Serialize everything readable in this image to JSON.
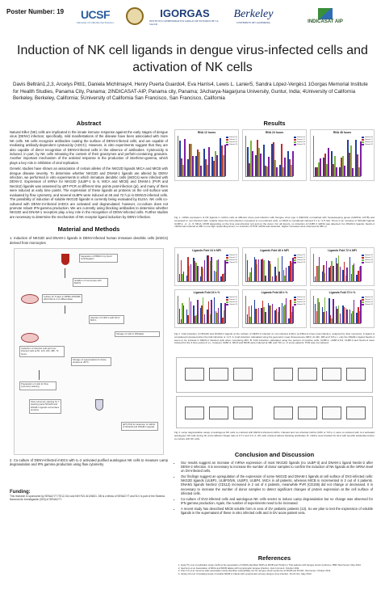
{
  "header": {
    "poster_number": "Poster Number: 19",
    "logos": [
      {
        "name": "UCSF",
        "sub": "University of California San Francisco"
      },
      {
        "name": "IGORGAS",
        "sub": "INSTITUTO CONMEMORATIVO GORGAS DE ESTUDIOS DE LA SALUD"
      },
      {
        "name": "Berkeley",
        "sub": "UNIVERSITY OF CALIFORNIA"
      },
      {
        "name": "INDICASAT AIP",
        "sub": ""
      }
    ]
  },
  "title": "Induction of NK cell ligands in dengue virus-infected cells and activation of NK cells",
  "authors": "Davis Beltrán1,2,3, Arcelys Pitti1, Daniela Michlmayr4, Henry Puerta Guardo4, Eva Harris4, Lewis L. Lanier5, Sandra López-Vergès1 1Gorgas Memorial Institute for Health Studies, Panama City, Panama; 2INDICASAT-AIP, Panama city, Panama; 3Acharya-Nagarjuna University, Guntur, India; 4University of California Berkeley, Berkeley, California; 5University of California San Francisco, San Francisco, California",
  "abstract": {
    "heading": "Abstract",
    "paragraphs": [
      "Natural Killer (NK) cells are implicated in the innate immune response against the early stages of dengue virus (DENV) infection; specifically, mild manifestations of the disease have been associated with more NK cells. NK cells recognize antibodies coating the surface of DENV-infected cells, and are capable of mediating antibody-dependent cytotoxicity (ADCC). However, in vitro experiments suggest that they are also capable of direct recognition of DENV-infected cells in the absence of antibodies. Cytotoxicity is induced, in part, by NK cells releasing the content of their granzymes and perforin-containing granules. Another important mechanism of the antiviral response is the production of interferon-gamma, which plays a key role in inhibition of viral replication.",
      "Genetic studies have shown an association of certain alleles of the NKG2D ligands MICA and MICB with dengue disease severity. To determine whether NKG2D and DNAM-1 ligands are altered by DENV infection, we performed in vitro experiments in which immature dendritic cells (imDCs) were infected with DENV-2. Expression of mRNA for NKG2D (ULBP-1 to 6, MICA and MICB) and DNAM-1 (PVR and Nectin2) ligands was assessed by qRT-PCR at different time points post-infection (pi), and many of them were induced at early time points. The expression of these ligands as proteins on the cell surface was evaluated by flow cytometry, and several ULBPs were induced at 48 and 72 h pi in DENV2-infected cells. The possibility of induction of soluble NKG2D ligands is currently being evaluated by ELISA. NK cells co-cultured with DENV-2-infected imDCs are activated and degranulated; however, co-culture does not promote robust IFN-gamma production. We are currently using blocking antibodies to determine whether NKG2D and DNAM-1 receptors play a key role in the recognition of DENV-infected cells. Further studies are necessary to determine the mechanism of NK receptor ligand induction by DENV infection."
    ]
  },
  "methods": {
    "heading": "Material and Methods",
    "item1": "1. Induction of NKG2D and DNAM-1 ligands in DENV-infected human immature dendritic cells (imDCs) derived from monocytes",
    "item2": "2. Co-culture of DENV-infected imDCs with IL-2 activated purified autologous NK cells to measure Lamp degranulation and IFN gamma production using flow cytometry",
    "schematic_labels": [
      "Separation of PBMC's by Ficoll centrifugation",
      "Isolation of monocytes with MACS",
      "Culture for 5 days in RPMI+10%FBS GM-CSF+IL-4 to differentiate",
      "Infection of imDC's with DV-2 MOI 1",
      "Storage of cells in RNAlater",
      "Collection of infected cells and non-infected cells at 6h, 12h, 24h, 48h, 72 hours",
      "Storage of supernatants for future studies at -80°C",
      "Preparation of cells for flow cytometry staining",
      "Flow cytometry staining for 7 staining panel NKG2D and DNAM-1 ligands cell surface proteins",
      "qRT-PCR for detection of mRNA of NKG2D and DNAM-1 ligands"
    ]
  },
  "funding": {
    "heading": "Funding:",
    "text": "This research is sponsored by SENACYT ITE12-014 and NIH R21 AI103631. DB is a fellow of SENACYT and SLV is part of the Sistema Nacional de Investigación (SNI) of SENACYT."
  },
  "results": {
    "heading": "Results",
    "fig1_panels": [
      "RNA 12 hours",
      "RNA 24 hours",
      "RNA 48 hours"
    ],
    "fig1_caption": "Fig 1. mRNA expression of NK ligands in imDCs cells at different times post-infection with Dengue virus type 2 (DENV2) normalized with housekeeping genes (GAPDH, ACTB) and compared to non-infected cells. Graphs show the fold induction compared to non-infected cells; a mRNA is considered induced if it is >1.5 fold. There is an increase of NKG2D ligands ULBP-1, -2, -4, -5, MICA, MICB depending on the time post-infection (pi) and on the donor. For all donors, no induction of ULBP-3 mRNA was detected. For DNAM-1 ligands, Nectin-2 mRNA was induced at 48h in one high responding donor, no induction of PVR mRNA was detected. Higher increases were observed at 48h p.i.",
    "fig2_panels": [
      "Ligands Fold 24 h MFI",
      "Ligands Fold 48 h MFI",
      "Ligands Fold 72 h MFI",
      "Ligands Fold 24 h %",
      "Ligands Fold 48 h %",
      "Ligands Fold 72 h %"
    ],
    "fig2_xlabel": "NK Ligands",
    "fig2_caption": "Fig 2. Fold induction of NKG2D and DNAM-1 ligands at the surface of DENV-2 infected vs non-infected imDCs at different times post-infection, analyzed by flow cytometry. A ligand is considered increased when the fold induction is >1.5. A. Fold induction calculated using the geometric mean fluorescence (MFI). At 24h, 48h and 72h p.i. only the DNAM-1 ligand Nectin-2 seem to be induced in DENV-2 infected cells when comparing MFI. B. Fold induction calculated using the percent of positive cells. ULBP-1, ULBP-2,5,6, ULBP-3 and Nectin-2 were induced for the 3 time points of p.i., however ULBP-4, MICA and MICB were induced at 48h and 72h p.i. in some patients. PVR was not induced.",
    "fig3_caption": "Fig 3. Lamp degranulation assay of autologous NK cells co-cultured with DENV-2-infected imDCs. Infected and non-infected imDCs (MOI or 72h p.i.) were co-cultured with IL-2 activated autologous NK cells during 4h at the Effector:Target ratio of 0.7:1 and 1:5. A. NK cells cultured without blocking antibodies. B. imDCs were blocked for HLA with specific antibodies before co-culture with NK cells.",
    "legend": [
      "Patient 16",
      "Patient 17",
      "Patient 18",
      "Patient 19"
    ],
    "series_colors": [
      "#1f3f9e",
      "#c62828",
      "#7cb342",
      "#7b1fa2"
    ]
  },
  "conclusion": {
    "heading": "Conclusion and Discussion",
    "bullets": [
      "Our results suggest an increase of mRNA expression of most NKG2D ligands (no ULBP-3) and DNAM-1 ligand Nectin-2 after DENV-2 infection. It is necessary to increase the number of donor samples to confirm the induction of NK ligands at the mRNA level on DV-infected cells.",
      "Our findings suggest an upregulation of the expression of some NKG2D and DNAM-1 ligands at cell surface of DV2-infected cells: NKG2D ligands (ULBP1, ULBP2/5/6, ULBP3, ULBP4, MICA in all patients, whereas MICB is incremented in 2 out of 4 patients. DNAM1 ligands Nectin2 (CD112) increased in 2 out of 4 patients, meanwhile PVR (CD155) did not change or decreased. It is necessary to increase the number of donor samples to detect significant changes of protein expression at the cell surface of infected cells.",
      "Co-culture of DV2-infected cells and autologous NK cells seems to induce Lamp degranulation but no change was observed for IFN gamma production. Again, the number of experiments need to be increased.",
      "A recent study has described MICB soluble form in sera of DV pediatric patients (13). So we plan to test the expression of soluble ligands in the supernatant of these in vitro infected cells and in DV acute patient sera."
    ]
  },
  "references": {
    "heading": "References",
    "items": [
      "Garg TK et al. A replication study confirms the association of GWAS-identified SNPs at MICB and PLCE1 in Thai patients with dengue shock syndrome. BMC Med Genet. May 2014.",
      "García G et al. Association of MICA and MICB alleles with symptomatic dengue infection. Hum Immunol. October 2011.",
      "Khor CC et al. Genome-wide association study identifies susceptibility loci for dengue shock syndrome at MICB and PLCE1. Nat Genet. October 2011.",
      "Library M et al. Circulating levels of soluble MICB in infants with symptomatic primary dengue virus infection. PLoS One. May 2013."
    ]
  }
}
